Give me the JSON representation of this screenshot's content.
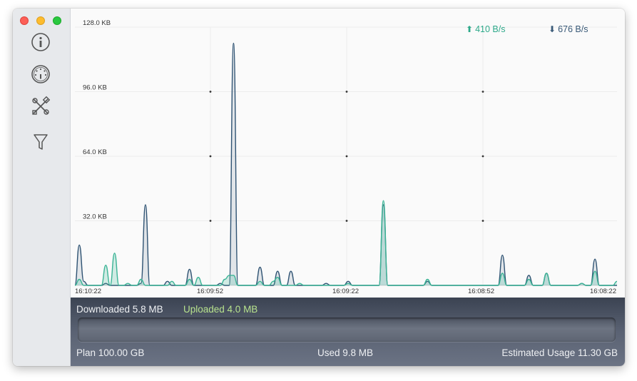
{
  "window": {
    "sidebar": {
      "items": [
        {
          "icon": "info-icon"
        },
        {
          "icon": "dial-icon"
        },
        {
          "icon": "tools-icon"
        },
        {
          "icon": "filter-icon"
        }
      ]
    }
  },
  "rates": {
    "upload": "410 B/s",
    "download": "676 B/s"
  },
  "chart_data": {
    "type": "area",
    "y_unit": "KB",
    "ylim": [
      0,
      128
    ],
    "yticks": [
      "128.0 KB",
      "96.0 KB",
      "64.0 KB",
      "32.0 KB"
    ],
    "xticks": [
      "16:10:22",
      "16:09:52",
      "16:09:22",
      "16:08:52",
      "16:08:22"
    ],
    "x_seconds_ago": [
      0,
      1,
      2,
      3,
      4,
      5,
      6,
      7,
      8,
      9,
      10,
      11,
      12,
      13,
      14,
      15,
      16,
      17,
      18,
      19,
      20,
      21,
      22,
      23,
      24,
      25,
      26,
      27,
      28,
      29,
      30,
      31,
      32,
      33,
      34,
      35,
      36,
      37,
      38,
      39,
      40,
      41,
      42,
      43,
      44,
      45,
      46,
      47,
      48,
      49,
      50,
      51,
      52,
      53,
      54,
      55,
      56,
      57,
      58,
      59,
      60,
      61,
      62,
      63,
      64,
      65,
      66,
      67,
      68,
      69,
      70,
      71,
      72,
      73,
      74,
      75,
      76,
      77,
      78,
      79,
      80,
      81,
      82,
      83,
      84,
      85,
      86,
      87,
      88,
      89,
      90,
      91,
      92,
      93,
      94,
      95,
      96,
      97,
      98,
      99,
      100,
      101,
      102,
      103,
      104,
      105,
      106,
      107,
      108,
      109,
      110,
      111,
      112,
      113,
      114,
      115,
      116,
      117,
      118,
      119,
      120,
      121,
      122,
      123
    ],
    "series": [
      {
        "name": "Downloaded",
        "color": "#2f5373",
        "values": [
          0,
          20,
          2,
          0,
          0,
          0,
          0,
          1,
          0,
          0,
          0,
          0,
          0,
          0,
          0,
          1,
          40,
          0,
          0,
          0,
          0,
          2,
          0,
          0,
          0,
          0,
          8,
          0,
          0,
          0,
          0,
          0,
          0,
          1,
          0,
          0,
          120,
          0,
          0,
          0,
          0,
          0,
          9,
          0,
          0,
          0,
          7,
          0,
          0,
          7,
          0,
          0,
          0,
          0,
          0,
          0,
          0,
          1,
          0,
          0,
          0,
          0,
          2,
          0,
          0,
          0,
          0,
          0,
          0,
          0,
          40,
          0,
          0,
          0,
          0,
          0,
          0,
          0,
          0,
          0,
          2,
          0,
          0,
          0,
          0,
          0,
          0,
          0,
          0,
          0,
          0,
          0,
          0,
          0,
          0,
          0,
          0,
          15,
          0,
          0,
          0,
          0,
          0,
          5,
          0,
          0,
          0,
          6,
          0,
          0,
          0,
          0,
          0,
          0,
          0,
          1,
          0,
          0,
          13,
          0,
          0,
          0,
          0,
          0
        ]
      },
      {
        "name": "Uploaded",
        "color": "#3cb496",
        "values": [
          0,
          3,
          0,
          0,
          0,
          0,
          0,
          10,
          0,
          16,
          0,
          0,
          1,
          0,
          0,
          3,
          0,
          0,
          0,
          0,
          0,
          0,
          2,
          0,
          0,
          0,
          3,
          0,
          4,
          0,
          0,
          0,
          0,
          0,
          3,
          5,
          5,
          0,
          0,
          0,
          0,
          0,
          2,
          0,
          0,
          2,
          4,
          0,
          0,
          0,
          0,
          1,
          0,
          0,
          0,
          0,
          0,
          0,
          0,
          0,
          0,
          0,
          1,
          0,
          0,
          0,
          0,
          0,
          0,
          0,
          42,
          0,
          0,
          0,
          0,
          0,
          0,
          0,
          0,
          0,
          3,
          0,
          0,
          0,
          0,
          0,
          0,
          0,
          0,
          0,
          0,
          0,
          0,
          0,
          0,
          0,
          0,
          6,
          0,
          0,
          0,
          0,
          0,
          3,
          0,
          0,
          0,
          6,
          0,
          0,
          0,
          0,
          0,
          0,
          0,
          1,
          0,
          0,
          7,
          0,
          0,
          0,
          0,
          2
        ]
      }
    ]
  },
  "usage": {
    "downloaded": "Downloaded 5.8 MB",
    "uploaded": "Uploaded 4.0 MB",
    "used_fraction": 0.0001,
    "plan": "Plan 100.00 GB",
    "used": "Used 9.8 MB",
    "estimated": "Estimated Usage 11.30 GB"
  },
  "colors": {
    "downloaded": "#2f5373",
    "uploaded": "#3cb496",
    "uploaded_label": "#b7e28d"
  }
}
